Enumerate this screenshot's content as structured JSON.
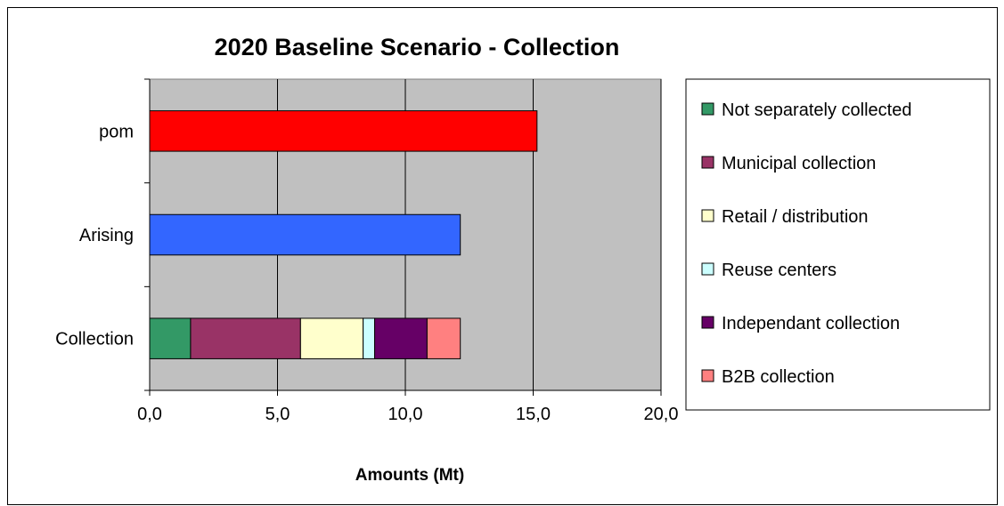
{
  "chart_data": {
    "type": "bar",
    "orientation": "horizontal",
    "stacked": true,
    "title": "2020 Baseline Scenario - Collection",
    "xlabel": "Amounts (Mt)",
    "ylabel": "",
    "xlim": [
      0,
      20
    ],
    "x_ticks": [
      "0,0",
      "5,0",
      "10,0",
      "15,0",
      "20,0"
    ],
    "x_tick_values": [
      0,
      5,
      10,
      15,
      20
    ],
    "grid": "vertical",
    "legend_position": "right",
    "categories": [
      "pom",
      "Arising",
      "Collection"
    ],
    "bars": [
      {
        "category": "pom",
        "segments": [
          {
            "value": 15.15,
            "color": "#ff0000"
          }
        ]
      },
      {
        "category": "Arising",
        "segments": [
          {
            "value": 12.15,
            "color": "#3366ff"
          }
        ]
      },
      {
        "category": "Collection",
        "segments": [
          {
            "series": "Not separately collected",
            "value": 1.6,
            "color": "#339966"
          },
          {
            "series": "Municipal collection",
            "value": 4.3,
            "color": "#993366"
          },
          {
            "series": "Retail / distribution",
            "value": 2.45,
            "color": "#ffffcc"
          },
          {
            "series": "Reuse centers",
            "value": 0.45,
            "color": "#ccffff"
          },
          {
            "series": "Independant collection",
            "value": 2.05,
            "color": "#660066"
          },
          {
            "series": "B2B collection",
            "value": 1.3,
            "color": "#ff8080"
          }
        ]
      }
    ],
    "legend": [
      {
        "name": "Not separately collected",
        "color": "#339966"
      },
      {
        "name": "Municipal collection",
        "color": "#993366"
      },
      {
        "name": "Retail / distribution",
        "color": "#ffffcc"
      },
      {
        "name": "Reuse centers",
        "color": "#ccffff"
      },
      {
        "name": "Independant collection",
        "color": "#660066"
      },
      {
        "name": "B2B collection",
        "color": "#ff8080"
      }
    ],
    "plot_background": "#c0c0c0"
  }
}
